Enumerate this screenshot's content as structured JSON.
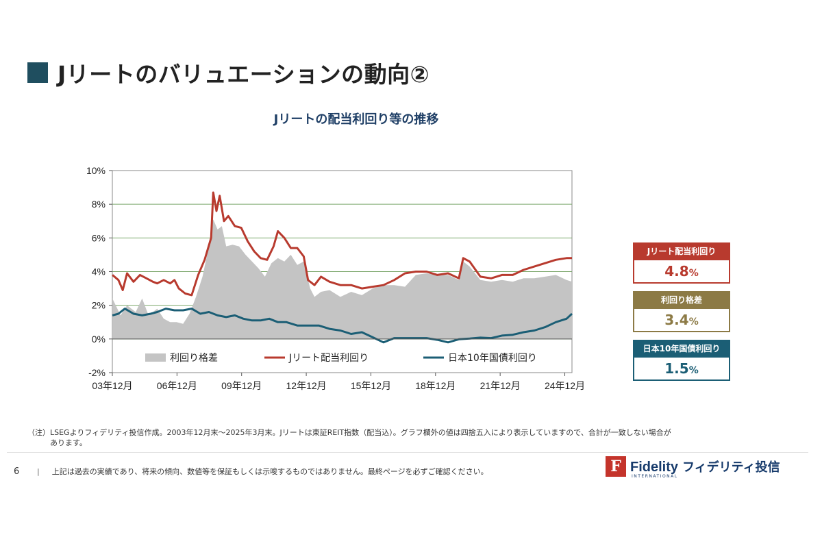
{
  "page": {
    "title": "Jリートのバリュエーションの動向②",
    "page_number": "6",
    "separator": "|",
    "disclaimer": "上記は過去の実績であり、将来の傾向、数値等を保証もしくは示唆するものではありません。最終ページを必ずご確認ください。",
    "note_line1": "（注）LSEGよりフィデリティ投信作成。2003年12月末～2025年3月末。Jリートは東証REIT指数（配当込）。グラフ欄外の値は四捨五入により表示していますので、合計が一致しない場合が",
    "note_line2": "あります。"
  },
  "logo": {
    "mark": "F",
    "name": "Fidelity",
    "jp_name": "フィデリティ投信",
    "sub": "INTERNATIONAL"
  },
  "kpis": [
    {
      "label": "Jリート配当利回り",
      "value": "4.8",
      "unit": "%",
      "color": "#b83a2e"
    },
    {
      "label": "利回り格差",
      "value": "3.4",
      "unit": "%",
      "color": "#8c7a45"
    },
    {
      "label": "日本10年国債利回り",
      "value": "1.5",
      "unit": "%",
      "color": "#1b5e75"
    }
  ],
  "colors": {
    "spread": "#c4c4c4",
    "jreit": "#b83a2e",
    "jgb": "#1b5e75",
    "grid": "#7aa66a",
    "title_square": "#1f4e5f"
  },
  "chart_data": {
    "type": "line",
    "title": "Jリートの配当利回り等の推移",
    "ylim": [
      -2,
      10
    ],
    "y_ticks": [
      -2,
      0,
      2,
      4,
      6,
      8,
      10
    ],
    "y_tick_labels": [
      "-2%",
      "0%",
      "2%",
      "4%",
      "6%",
      "8%",
      "10%"
    ],
    "xlim": [
      2003.917,
      2025.25
    ],
    "x_ticks": [
      2003.917,
      2006.917,
      2009.917,
      2012.917,
      2015.917,
      2018.917,
      2021.917,
      2024.917
    ],
    "x_tick_labels": [
      "03年12月",
      "06年12月",
      "09年12月",
      "12年12月",
      "15年12月",
      "18年12月",
      "21年12月",
      "24年12月"
    ],
    "grid": true,
    "legend_position": "bottom-inside",
    "series": [
      {
        "name": "利回り格差",
        "style": "area",
        "x": [
          2003.92,
          2004.3,
          2004.6,
          2005.0,
          2005.3,
          2005.6,
          2006.0,
          2006.3,
          2006.6,
          2006.9,
          2007.2,
          2007.5,
          2007.8,
          2008.1,
          2008.4,
          2008.6,
          2008.8,
          2009.0,
          2009.2,
          2009.5,
          2009.8,
          2010.1,
          2010.4,
          2010.7,
          2011.0,
          2011.3,
          2011.6,
          2011.9,
          2012.2,
          2012.5,
          2012.8,
          2013.1,
          2013.3,
          2013.6,
          2014.0,
          2014.5,
          2015.0,
          2015.5,
          2016.0,
          2016.5,
          2017.0,
          2017.5,
          2018.0,
          2018.5,
          2019.0,
          2019.5,
          2020.0,
          2020.2,
          2020.5,
          2021.0,
          2021.5,
          2022.0,
          2022.5,
          2023.0,
          2023.5,
          2024.0,
          2024.5,
          2025.0,
          2025.25
        ],
        "values": [
          2.4,
          1.4,
          2.0,
          1.6,
          2.4,
          1.4,
          1.8,
          1.2,
          1.0,
          1.0,
          0.9,
          1.5,
          2.5,
          3.7,
          5.5,
          7.1,
          6.5,
          6.7,
          5.5,
          5.6,
          5.5,
          5.0,
          4.6,
          4.2,
          3.7,
          4.5,
          4.8,
          4.6,
          5.0,
          4.4,
          4.6,
          3.0,
          2.5,
          2.8,
          2.9,
          2.5,
          2.8,
          2.6,
          3.0,
          3.2,
          3.2,
          3.1,
          3.8,
          3.9,
          3.8,
          3.8,
          3.5,
          4.6,
          4.3,
          3.5,
          3.4,
          3.5,
          3.4,
          3.6,
          3.6,
          3.7,
          3.8,
          3.5,
          3.4
        ]
      },
      {
        "name": "Jリート配当利回り",
        "style": "line",
        "x": [
          2003.92,
          2004.2,
          2004.4,
          2004.6,
          2004.9,
          2005.2,
          2005.5,
          2005.8,
          2006.0,
          2006.3,
          2006.6,
          2006.8,
          2007.0,
          2007.3,
          2007.6,
          2007.9,
          2008.2,
          2008.5,
          2008.6,
          2008.75,
          2008.9,
          2009.1,
          2009.3,
          2009.6,
          2009.9,
          2010.2,
          2010.5,
          2010.8,
          2011.1,
          2011.4,
          2011.6,
          2011.9,
          2012.2,
          2012.5,
          2012.8,
          2013.0,
          2013.3,
          2013.6,
          2014.0,
          2014.5,
          2015.0,
          2015.5,
          2016.0,
          2016.5,
          2017.0,
          2017.5,
          2018.0,
          2018.5,
          2019.0,
          2019.5,
          2020.0,
          2020.2,
          2020.5,
          2021.0,
          2021.5,
          2022.0,
          2022.5,
          2023.0,
          2023.5,
          2024.0,
          2024.5,
          2025.0,
          2025.25
        ],
        "values": [
          3.8,
          3.5,
          2.9,
          3.9,
          3.4,
          3.8,
          3.6,
          3.4,
          3.3,
          3.5,
          3.3,
          3.5,
          3.0,
          2.7,
          2.6,
          3.8,
          4.7,
          6.0,
          8.7,
          7.6,
          8.5,
          7.0,
          7.3,
          6.7,
          6.6,
          5.8,
          5.2,
          4.8,
          4.7,
          5.5,
          6.4,
          6.0,
          5.4,
          5.4,
          4.9,
          3.5,
          3.2,
          3.7,
          3.4,
          3.2,
          3.2,
          3.0,
          3.1,
          3.2,
          3.5,
          3.9,
          4.0,
          4.0,
          3.8,
          3.9,
          3.6,
          4.8,
          4.6,
          3.7,
          3.6,
          3.8,
          3.8,
          4.1,
          4.3,
          4.5,
          4.7,
          4.8,
          4.8
        ]
      },
      {
        "name": "日本10年国債利回り",
        "style": "line",
        "x": [
          2003.92,
          2004.2,
          2004.5,
          2004.9,
          2005.3,
          2005.7,
          2006.0,
          2006.4,
          2006.8,
          2007.2,
          2007.6,
          2008.0,
          2008.4,
          2008.8,
          2009.2,
          2009.6,
          2010.0,
          2010.4,
          2010.8,
          2011.2,
          2011.6,
          2012.0,
          2012.5,
          2013.0,
          2013.5,
          2014.0,
          2014.5,
          2015.0,
          2015.5,
          2016.0,
          2016.5,
          2017.0,
          2017.5,
          2018.0,
          2018.5,
          2019.0,
          2019.5,
          2020.0,
          2020.5,
          2021.0,
          2021.5,
          2022.0,
          2022.5,
          2023.0,
          2023.5,
          2024.0,
          2024.5,
          2025.0,
          2025.25
        ],
        "values": [
          1.4,
          1.5,
          1.8,
          1.5,
          1.4,
          1.5,
          1.6,
          1.8,
          1.7,
          1.7,
          1.8,
          1.5,
          1.6,
          1.4,
          1.3,
          1.4,
          1.2,
          1.1,
          1.1,
          1.2,
          1.0,
          1.0,
          0.8,
          0.8,
          0.8,
          0.6,
          0.5,
          0.3,
          0.4,
          0.1,
          -0.2,
          0.05,
          0.05,
          0.05,
          0.05,
          -0.05,
          -0.2,
          -0.02,
          0.02,
          0.08,
          0.05,
          0.2,
          0.25,
          0.4,
          0.5,
          0.7,
          1.0,
          1.2,
          1.5
        ]
      }
    ]
  }
}
